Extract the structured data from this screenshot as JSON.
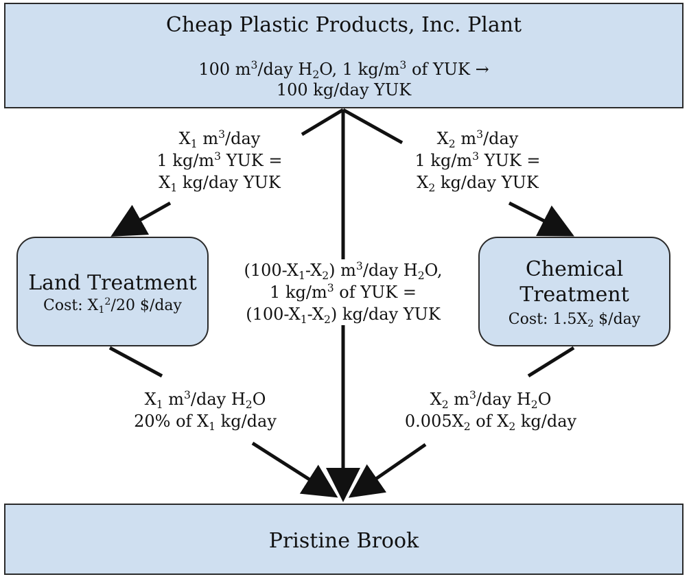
{
  "plant": {
    "name": "Cheap Plastic Products, Inc. Plant",
    "line1": {
      "a": "100 m",
      "b": "3",
      "c": "/day H",
      "d": "2",
      "e": "O, 1 kg/m",
      "f": "3",
      "g": " of YUK →"
    },
    "line2": "100 kg/day YUK"
  },
  "brook": {
    "name": "Pristine Brook"
  },
  "land": {
    "name": "Land Treatment",
    "cost": {
      "a": "Cost: X",
      "b": "1",
      "c": "2",
      "d": "/20 $/day"
    }
  },
  "chemical": {
    "name_line1": "Chemical",
    "name_line2": "Treatment",
    "cost": {
      "a": "Cost: 1.5X",
      "b": "2",
      "c": " $/day"
    }
  },
  "flow_left_in": {
    "l1": {
      "a": "X",
      "b": "1",
      "c": " m",
      "d": "3",
      "e": "/day"
    },
    "l2": {
      "a": "1 kg/m",
      "b": "3",
      "c": " YUK ="
    },
    "l3": {
      "a": "X",
      "b": "1",
      "c": " kg/day YUK"
    }
  },
  "flow_right_in": {
    "l1": {
      "a": "X",
      "b": "2",
      "c": " m",
      "d": "3",
      "e": "/day"
    },
    "l2": {
      "a": "1 kg/m",
      "b": "3",
      "c": " YUK ="
    },
    "l3": {
      "a": "X",
      "b": "2",
      "c": " kg/day YUK"
    }
  },
  "flow_middle": {
    "l1": {
      "a": "(100-X",
      "b": "1",
      "c": "-X",
      "d": "2",
      "e": ") m",
      "f": "3",
      "g": "/day H",
      "h": "2",
      "i": "O,"
    },
    "l2": {
      "a": "1 kg/m",
      "b": "3",
      "c": " of YUK ="
    },
    "l3": {
      "a": "(100-X",
      "b": "1",
      "c": "-X",
      "d": "2",
      "e": ") kg/day YUK"
    }
  },
  "flow_left_out": {
    "l1": {
      "a": "X",
      "b": "1",
      "c": " m",
      "d": "3",
      "e": "/day H",
      "f": "2",
      "g": "O"
    },
    "l2": {
      "a": "20% of X",
      "b": "1",
      "c": " kg/day"
    }
  },
  "flow_right_out": {
    "l1": {
      "a": "X",
      "b": "2",
      "c": " m",
      "d": "3",
      "e": "/day H",
      "f": "2",
      "g": "O"
    },
    "l2": {
      "a": "0.005X",
      "b": "2",
      "c": " of X",
      "d": "2",
      "e": " kg/day"
    }
  },
  "colors": {
    "box_fill": "#cfdff0",
    "stroke": "#111111"
  }
}
